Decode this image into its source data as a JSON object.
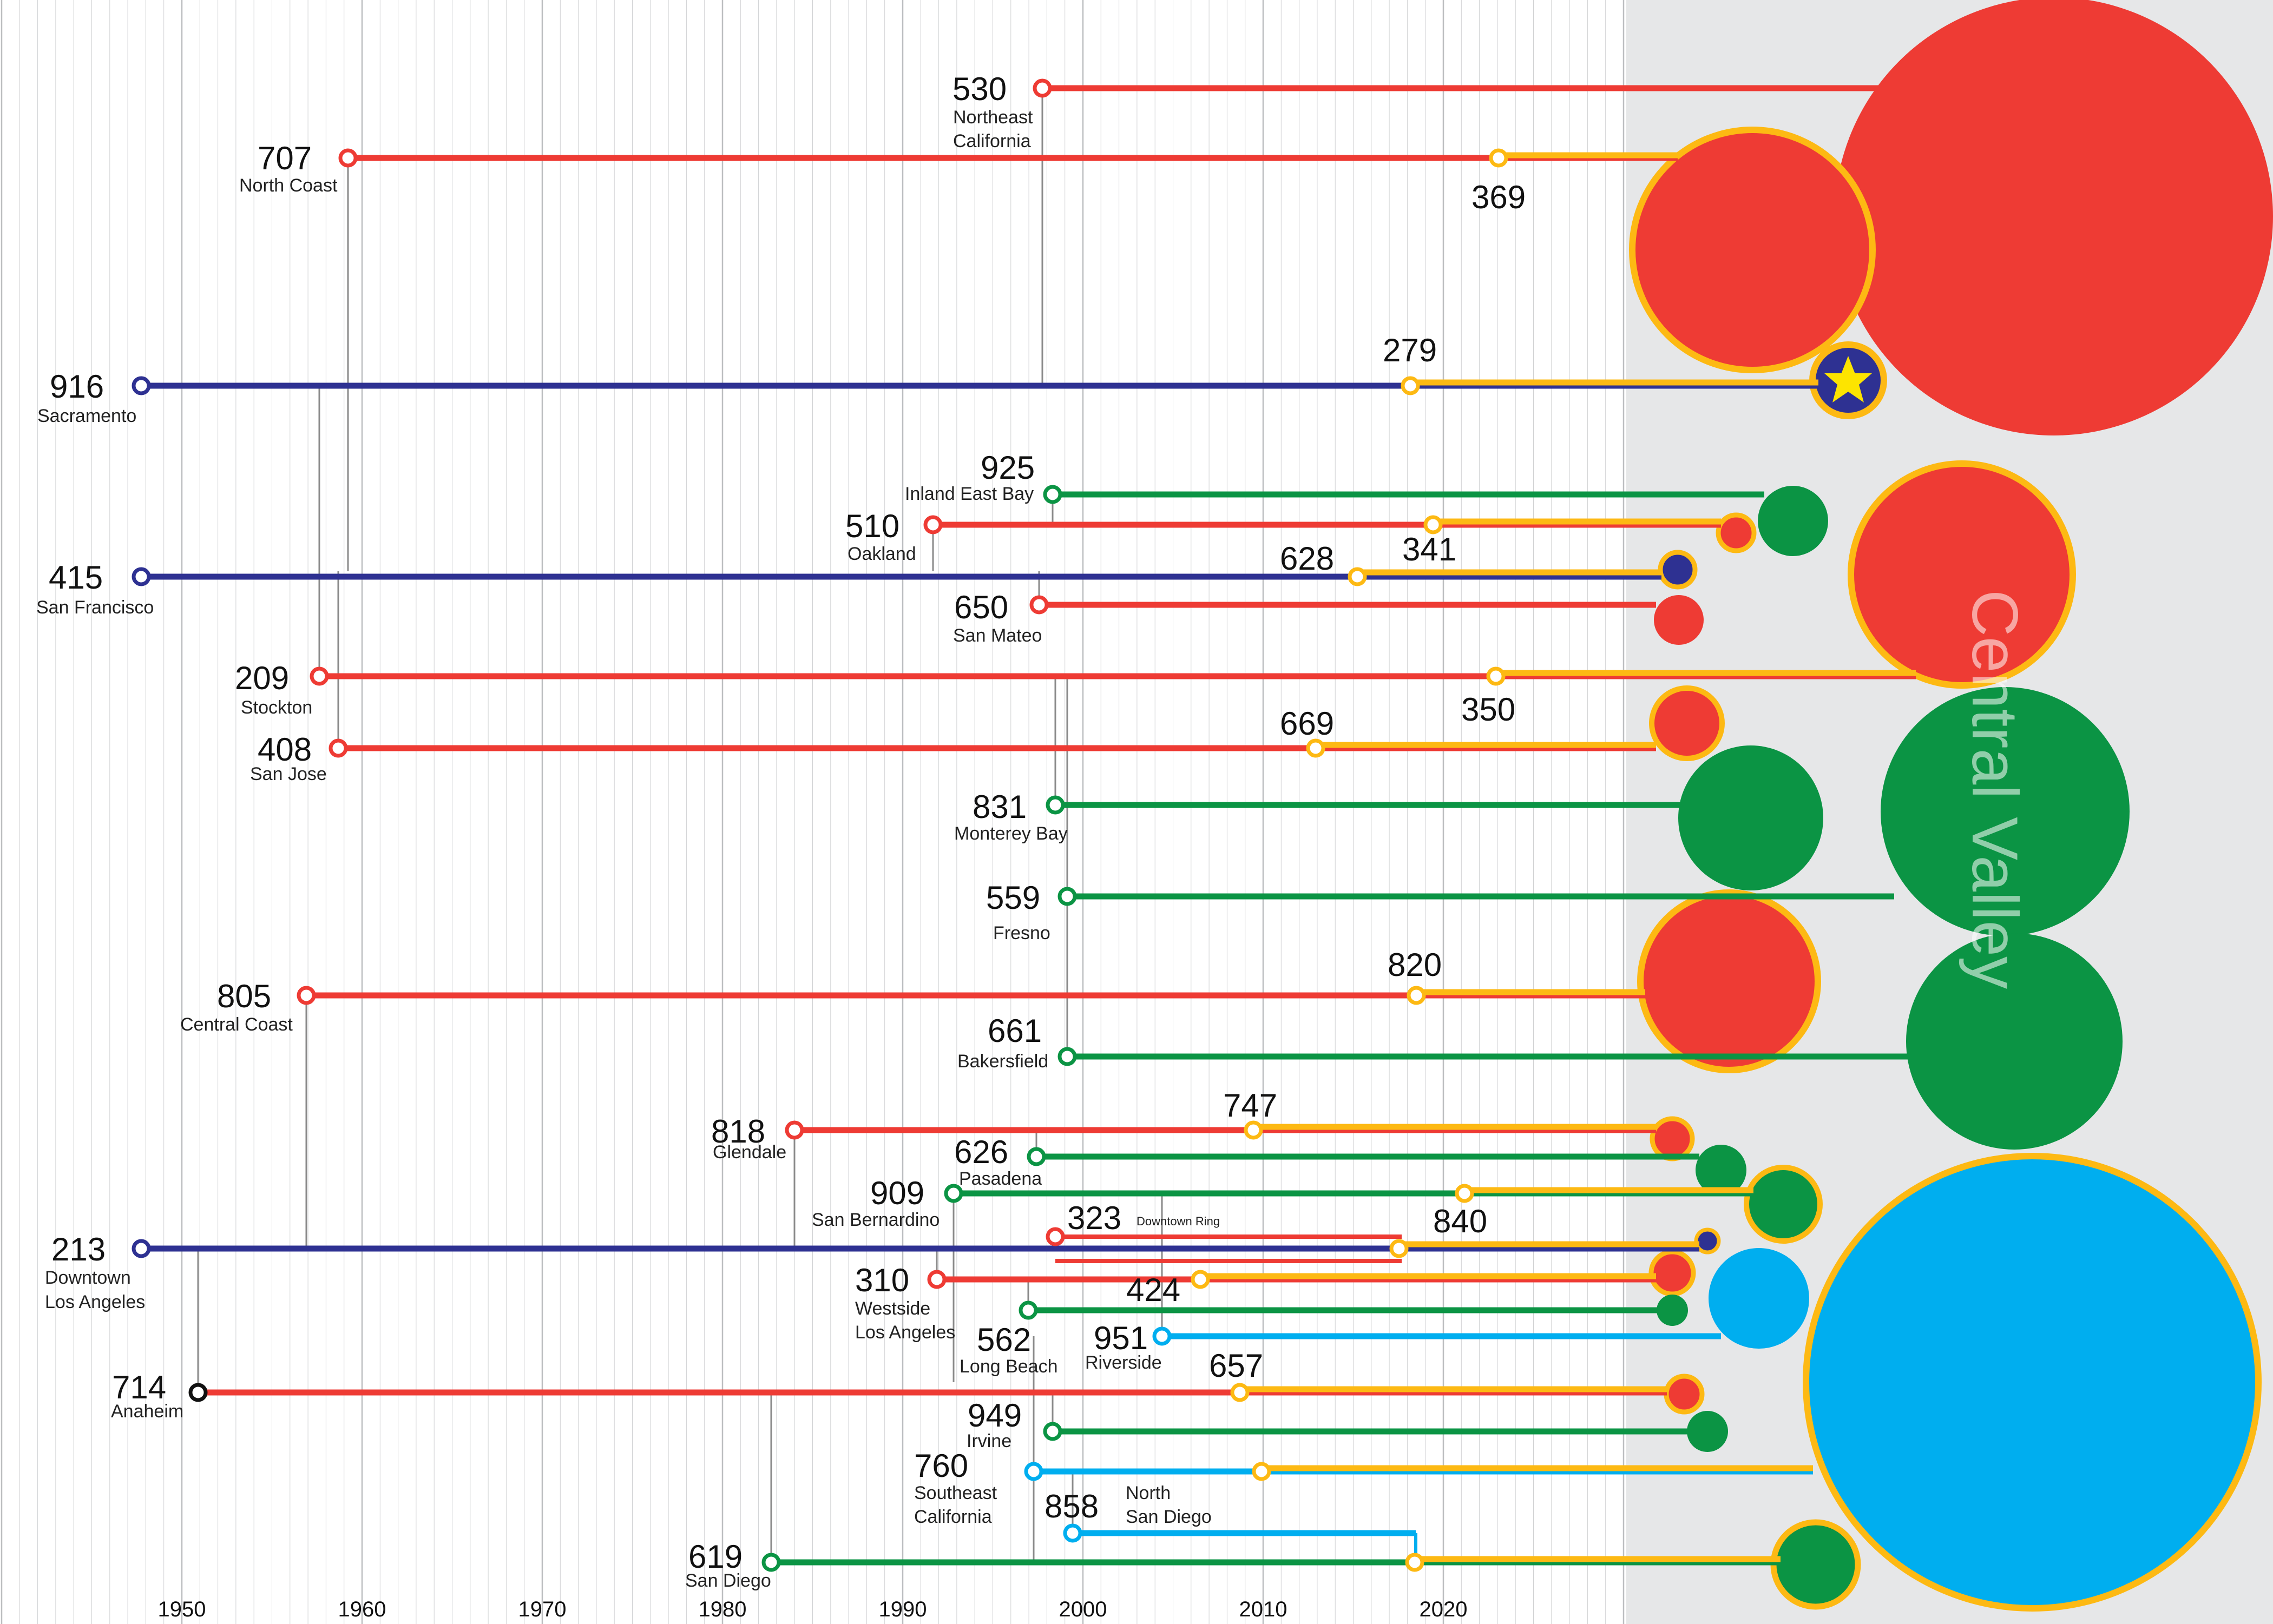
{
  "colors": {
    "red": "#EE3B34",
    "green": "#0B9444",
    "navy": "#2E3192",
    "cyan": "#00AEEF",
    "gold": "#FDB913",
    "black": "#111111",
    "panel": "#E6E7E8",
    "grid": "#BCBEC0"
  },
  "axis": {
    "years": [
      "1950",
      "1960",
      "1970",
      "1980",
      "1990",
      "2000",
      "2010",
      "2020"
    ]
  },
  "panel_label": "Central Valley",
  "labels": {
    "c530": "530",
    "r530a": "Northeast",
    "r530b": "California",
    "c707": "707",
    "r707": "North Coast",
    "c369": "369",
    "c916": "916",
    "r916": "Sacramento",
    "c279": "279",
    "c925": "925",
    "r925": "Inland East Bay",
    "c510": "510",
    "r510": "Oakland",
    "c341": "341",
    "c415": "415",
    "r415": "San Francisco",
    "c628": "628",
    "c650": "650",
    "r650": "San Mateo",
    "c209": "209",
    "r209": "Stockton",
    "c350": "350",
    "c408": "408",
    "r408": "San Jose",
    "c669": "669",
    "c831": "831",
    "r831": "Monterey Bay",
    "c559": "559",
    "r559": "Fresno",
    "c805": "805",
    "r805": "Central Coast",
    "c820": "820",
    "c661": "661",
    "r661": "Bakersfield",
    "c818": "818",
    "r818": "Glendale",
    "c747": "747",
    "c626": "626",
    "r626": "Pasadena",
    "c909": "909",
    "r909": "San Bernardino",
    "c323": "323",
    "r323": "Downtown Ring",
    "c840": "840",
    "c213": "213",
    "r213a": "Downtown",
    "r213b": "Los Angeles",
    "c310": "310",
    "r310a": "Westside",
    "r310b": "Los Angeles",
    "c424": "424",
    "c562": "562",
    "r562": "Long Beach",
    "c951": "951",
    "r951": "Riverside",
    "c714": "714",
    "r714": "Anaheim",
    "c657": "657",
    "c949": "949",
    "r949": "Irvine",
    "c760": "760",
    "r760a": "Southeast",
    "r760b": "California",
    "c858": "858",
    "r858a": "North",
    "r858b": "San Diego",
    "c619": "619",
    "r619": "San Diego"
  }
}
